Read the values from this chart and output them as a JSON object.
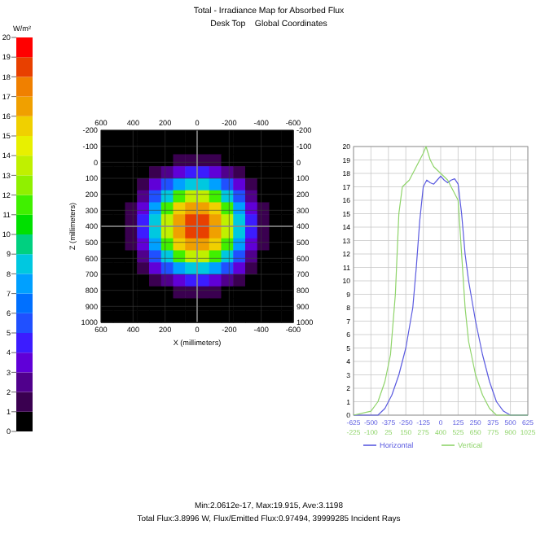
{
  "chart_data": [
    {
      "type": "heatmap",
      "title": "Total - Irradiance Map for Absorbed Flux",
      "subtitle": "Desk Top    Global Coordinates",
      "xlabel": "X (millimeters)",
      "ylabel": "Z (millimeters)",
      "clabel": "W/m²",
      "annotations": [
        "Min:2.0612e-17, Max:19.915, Ave:3.1198",
        "Total Flux:3.8996 W, Flux/Emitted Flux:0.97494, 39999285 Incident Rays"
      ],
      "xlim": [
        600,
        -600
      ],
      "xticks": [
        600,
        400,
        200,
        0,
        -200,
        -400,
        -600
      ],
      "x2lim": [
        600,
        -600
      ],
      "x2ticks": [
        600,
        400,
        200,
        0,
        -200,
        -400,
        -600
      ],
      "ylim": [
        1000,
        -200
      ],
      "yticks": [
        -200,
        -100,
        0,
        100,
        200,
        300,
        400,
        500,
        600,
        700,
        800,
        900,
        1000
      ],
      "y2lim": [
        1000,
        -200
      ],
      "y2ticks": [
        -200,
        -100,
        0,
        100,
        200,
        300,
        400,
        500,
        600,
        700,
        800,
        900,
        1000
      ],
      "grid": true,
      "ref_lines": [
        {
          "axis": "x",
          "value": 0,
          "color": "#8a8a8a"
        },
        {
          "axis": "y",
          "value": 400,
          "color": "#8a8a8a"
        }
      ],
      "clim": [
        0,
        20
      ],
      "cticks": [
        0,
        1,
        2,
        3,
        4,
        5,
        6,
        7,
        8,
        9,
        10,
        11,
        12,
        13,
        14,
        15,
        16,
        17,
        18,
        19,
        20
      ],
      "colors": [
        "#000000",
        "#3a0050",
        "#50008c",
        "#6000d8",
        "#3c1cff",
        "#2050ff",
        "#0070ff",
        "#00a0ff",
        "#00c8e0",
        "#00d080",
        "#00e000",
        "#40f000",
        "#90f000",
        "#c0f000",
        "#e8f000",
        "#f0d000",
        "#f0a000",
        "#f08000",
        "#e84000",
        "#ff0000"
      ],
      "cells": [
        [
          0,
          0,
          0,
          0,
          0,
          0,
          0,
          0,
          0,
          0,
          0,
          0,
          0,
          0,
          0,
          0
        ],
        [
          0,
          0,
          0,
          0,
          0,
          0,
          0.1,
          0.2,
          0.2,
          0.1,
          0,
          0,
          0,
          0,
          0,
          0
        ],
        [
          0,
          0,
          0,
          0,
          0.2,
          0.7,
          1.3,
          1.6,
          1.6,
          1.3,
          0.7,
          0.2,
          0,
          0,
          0,
          0
        ],
        [
          0,
          0,
          0,
          0.3,
          1.3,
          2.6,
          3.8,
          4.5,
          4.5,
          3.8,
          2.6,
          1.3,
          0.3,
          0,
          0,
          0
        ],
        [
          0,
          0,
          0.2,
          1.3,
          3.1,
          5.4,
          7.4,
          8.6,
          8.6,
          7.4,
          5.4,
          3.1,
          1.3,
          0.2,
          0,
          0
        ],
        [
          0,
          0,
          0.7,
          2.6,
          5.4,
          8.6,
          11.4,
          13.0,
          13.0,
          11.4,
          8.6,
          5.4,
          2.6,
          0.7,
          0,
          0
        ],
        [
          0,
          0.1,
          1.3,
          3.8,
          7.4,
          11.4,
          15.0,
          16.8,
          16.8,
          15.0,
          11.4,
          7.4,
          3.8,
          1.3,
          0.1,
          0
        ],
        [
          0,
          0.2,
          1.6,
          4.5,
          8.6,
          13.0,
          16.8,
          18.4,
          18.4,
          16.8,
          13.0,
          8.6,
          4.5,
          1.6,
          0.2,
          0
        ],
        [
          0,
          0.2,
          1.6,
          4.5,
          8.6,
          13.0,
          16.8,
          18.4,
          18.4,
          16.8,
          13.0,
          8.6,
          4.5,
          1.6,
          0.2,
          0
        ],
        [
          0,
          0.1,
          1.3,
          3.8,
          7.4,
          11.4,
          15.0,
          16.8,
          16.8,
          15.0,
          11.4,
          7.4,
          3.8,
          1.3,
          0.1,
          0
        ],
        [
          0,
          0,
          0.7,
          2.6,
          5.4,
          8.6,
          11.4,
          13.0,
          13.0,
          11.4,
          8.6,
          5.4,
          2.6,
          0.7,
          0,
          0
        ],
        [
          0,
          0,
          0.2,
          1.3,
          3.1,
          5.4,
          7.4,
          8.6,
          8.6,
          7.4,
          5.4,
          3.1,
          1.3,
          0.2,
          0,
          0
        ],
        [
          0,
          0,
          0,
          0.3,
          1.3,
          2.6,
          3.8,
          4.5,
          4.5,
          3.8,
          2.6,
          1.3,
          0.3,
          0,
          0,
          0
        ],
        [
          0,
          0,
          0,
          0,
          0.2,
          0.7,
          1.3,
          1.6,
          1.6,
          1.3,
          0.7,
          0.2,
          0,
          0,
          0,
          0
        ],
        [
          0,
          0,
          0,
          0,
          0,
          0,
          0.1,
          0.2,
          0.2,
          0.1,
          0,
          0,
          0,
          0,
          0,
          0
        ],
        [
          0,
          0,
          0,
          0,
          0,
          0,
          0,
          0,
          0,
          0,
          0,
          0,
          0,
          0,
          0,
          0
        ]
      ]
    },
    {
      "type": "line",
      "legend": "bottom",
      "grid": true,
      "xlim": [
        -625,
        625
      ],
      "xticks": [
        -625,
        -500,
        -375,
        -250,
        -125,
        0,
        125,
        250,
        375,
        500,
        625
      ],
      "x2lim": [
        -225,
        1025
      ],
      "x2ticks": [
        -225,
        -100,
        25,
        150,
        275,
        400,
        525,
        650,
        775,
        900,
        1025
      ],
      "ylim": [
        0,
        20
      ],
      "yticks": [
        0,
        1,
        2,
        3,
        4,
        5,
        6,
        7,
        8,
        9,
        10,
        11,
        12,
        13,
        14,
        15,
        16,
        17,
        18,
        19,
        20
      ],
      "series": [
        {
          "name": "Horizontal",
          "color": "#5a5ae0",
          "x": [
            -625,
            -450,
            -400,
            -350,
            -300,
            -250,
            -200,
            -175,
            -150,
            -125,
            -100,
            -75,
            -50,
            -25,
            0,
            25,
            50,
            75,
            100,
            125,
            150,
            175,
            200,
            250,
            300,
            350,
            400,
            450,
            500,
            625
          ],
          "values": [
            0,
            0,
            0.5,
            1.5,
            3,
            5,
            8,
            11,
            14.5,
            17,
            17.5,
            17.3,
            17.2,
            17.5,
            17.8,
            17.5,
            17.3,
            17.5,
            17.6,
            17.2,
            15,
            12,
            10,
            7,
            4.5,
            2.5,
            1,
            0.3,
            0,
            0
          ]
        },
        {
          "name": "Vertical",
          "color": "#8fd46a",
          "axis": "x2",
          "x": [
            -225,
            -100,
            -50,
            0,
            40,
            75,
            100,
            125,
            175,
            225,
            275,
            295,
            325,
            350,
            400,
            450,
            500,
            525,
            550,
            575,
            600,
            650,
            700,
            750,
            800,
            1025
          ],
          "values": [
            0,
            0.3,
            1,
            2.5,
            4.5,
            9,
            15,
            17,
            17.5,
            18.5,
            19.5,
            20,
            19,
            18.5,
            18,
            17.5,
            16.5,
            16,
            12,
            8,
            5.5,
            3,
            1.5,
            0.5,
            0,
            0
          ]
        }
      ]
    }
  ]
}
